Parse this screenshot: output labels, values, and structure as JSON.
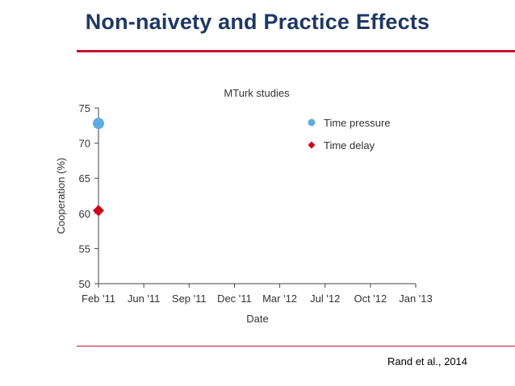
{
  "slide": {
    "title": "Non-naivety and Practice Effects",
    "citation": "Rand et al., 2014"
  },
  "colors": {
    "title": "#1F3864",
    "rule": "#C8102E",
    "time_pressure": "#5DADE2",
    "time_delay": "#D0021B"
  },
  "chart_data": {
    "type": "scatter",
    "title": "MTurk studies",
    "xlabel": "Date",
    "ylabel": "Cooperation (%)",
    "x_ticks": [
      "Feb '11",
      "Jun '11",
      "Sep '11",
      "Dec '11",
      "Mar '12",
      "Jul '12",
      "Oct '12",
      "Jan '13"
    ],
    "ylim": [
      50,
      75
    ],
    "y_ticks": [
      50,
      55,
      60,
      65,
      70,
      75
    ],
    "grid": false,
    "legend_position": "top-right",
    "series": [
      {
        "name": "Time pressure",
        "marker": "circle",
        "points": [
          {
            "x": "Feb '11",
            "y": 72.8
          }
        ]
      },
      {
        "name": "Time delay",
        "marker": "diamond",
        "points": [
          {
            "x": "Feb '11",
            "y": 60.4
          }
        ]
      }
    ]
  }
}
